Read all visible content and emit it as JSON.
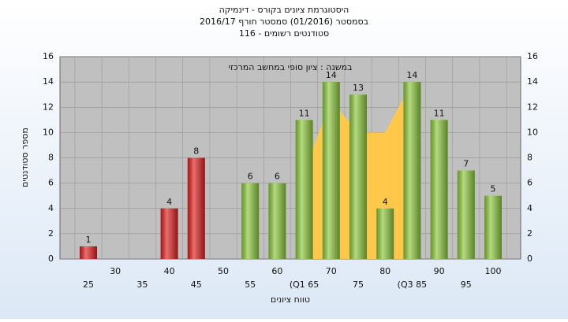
{
  "chart_data": {
    "type": "bar",
    "title": "היסטוגרמת ציונים בקורס - דינמיקה",
    "subtitle": "בסמסטר  (01/2016)  סמסטר חורף 2016/17",
    "subtitle2": "סטודנטים רשומים - 116",
    "annotation": "במשנה : ציון סופי במחשב המרכזי",
    "x_label": "טווח ציונים",
    "y_label": "מספר סטודנטים",
    "categories": [
      "25",
      "30",
      "35",
      "40",
      "45",
      "50",
      "55",
      "60",
      "(Q1 65",
      "70",
      "75",
      "80",
      "(Q3 85",
      "90",
      "95",
      "100"
    ],
    "values": [
      1,
      0,
      0,
      4,
      8,
      0,
      6,
      6,
      11,
      14,
      13,
      4,
      14,
      11,
      7,
      5
    ],
    "colors": [
      "#e02020",
      "#e02020",
      "#e02020",
      "#e02020",
      "#e02020",
      "#e02020",
      "#8cc83c",
      "#8cc83c",
      "#8cc83c",
      "#8cc83c",
      "#8cc83c",
      "#8cc83c",
      "#8cc83c",
      "#8cc83c",
      "#8cc83c",
      "#8cc83c"
    ],
    "area": {
      "color": "#ffc84a",
      "x": [
        65,
        70,
        75,
        80,
        85
      ],
      "values": [
        7,
        12.5,
        10,
        10,
        14
      ]
    },
    "ylim": [
      0,
      16
    ],
    "yticks": [
      0,
      2,
      4,
      6,
      8,
      10,
      12,
      14,
      16
    ],
    "grid": true
  }
}
